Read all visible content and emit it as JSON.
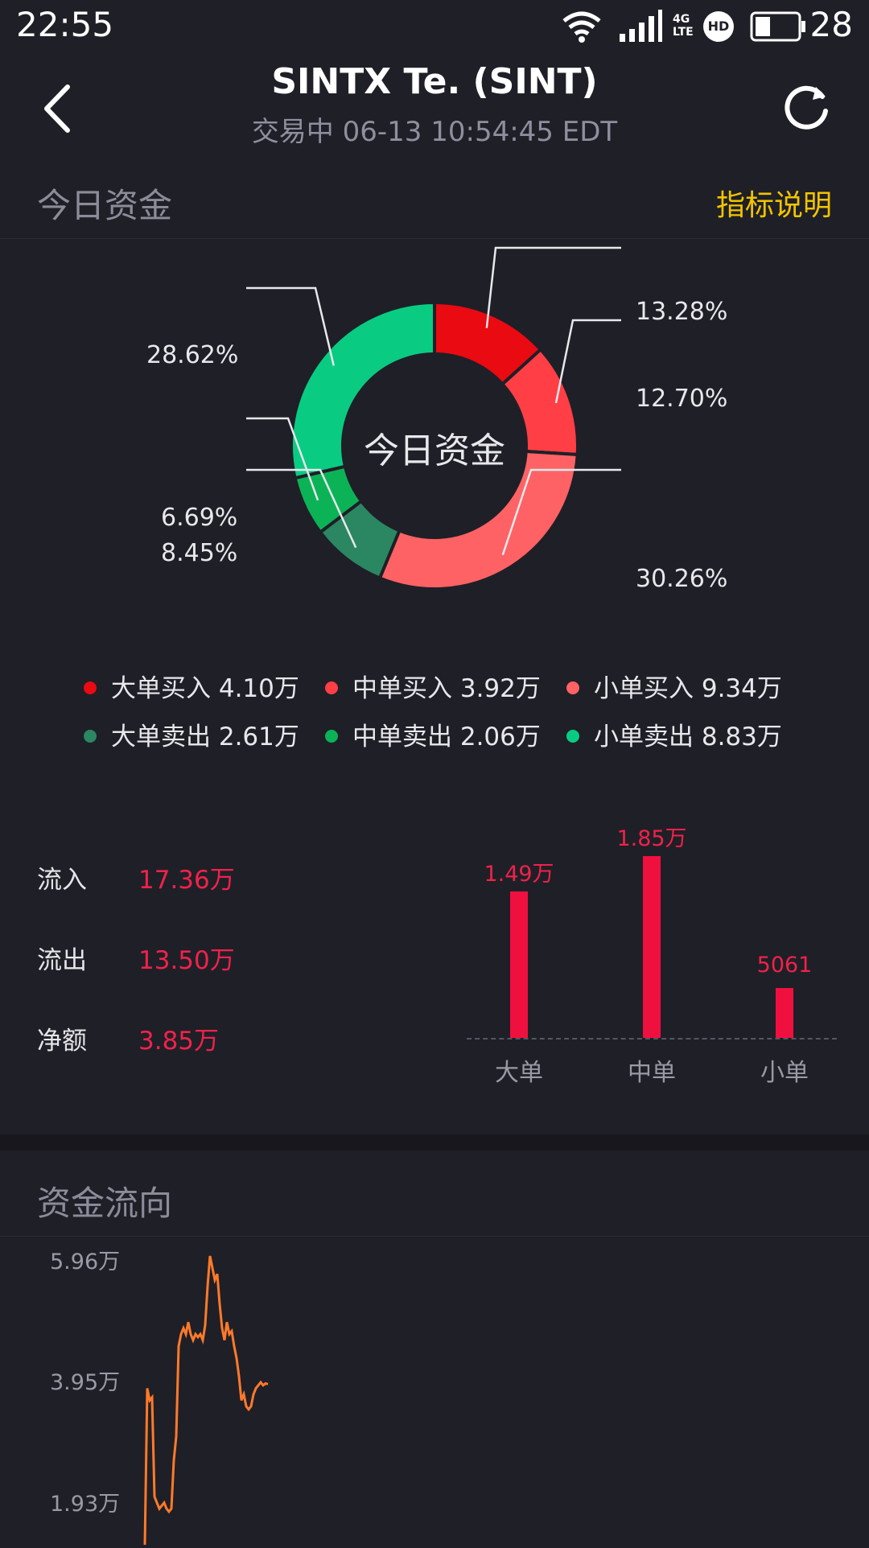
{
  "status_bar": {
    "time": "22:55",
    "network": "4G LTE",
    "hd": "HD",
    "battery": "28"
  },
  "header": {
    "title": "SINTX Te. (SINT)",
    "subtitle": "交易中 06-13 10:54:45 EDT"
  },
  "today_funds": {
    "section_title": "今日资金",
    "indicator_link": "指标说明",
    "donut_center": "今日资金"
  },
  "colors": {
    "large_buy": "#e90a12",
    "medium_buy": "#ff3f45",
    "small_buy": "#ff6264",
    "large_sell": "#2a8762",
    "medium_sell": "#0bb356",
    "small_sell": "#09cc82",
    "accent_yellow": "#f2c400",
    "value_red": "#f0224a",
    "line_orange": "#ff7a2a"
  },
  "legend": [
    {
      "label": "大单买入 4.10万",
      "color": "#e90a12"
    },
    {
      "label": "中单买入 3.92万",
      "color": "#ff3f45"
    },
    {
      "label": "小单买入 9.34万",
      "color": "#ff6264"
    },
    {
      "label": "大单卖出 2.61万",
      "color": "#2a8762"
    },
    {
      "label": "中单卖出 2.06万",
      "color": "#0bb356"
    },
    {
      "label": "小单卖出 8.83万",
      "color": "#09cc82"
    }
  ],
  "flows": [
    {
      "label": "流入",
      "value": "17.36万"
    },
    {
      "label": "流出",
      "value": "13.50万"
    },
    {
      "label": "净额",
      "value": "3.85万"
    }
  ],
  "fund_flow": {
    "section_title": "资金流向"
  },
  "chart_data": [
    {
      "type": "pie",
      "title": "今日资金",
      "categories": [
        "大单买入",
        "中单买入",
        "小单买入",
        "大单卖出",
        "中单卖出",
        "小单卖出"
      ],
      "values": [
        13.28,
        12.7,
        30.26,
        8.45,
        6.69,
        28.62
      ],
      "labels": [
        "13.28%",
        "12.70%",
        "30.26%",
        "8.45%",
        "6.69%",
        "28.62%"
      ]
    },
    {
      "type": "bar",
      "categories": [
        "大单",
        "中单",
        "小单"
      ],
      "values": [
        14900,
        18500,
        5061
      ],
      "labels": [
        "1.49万",
        "1.85万",
        "5061"
      ]
    },
    {
      "type": "line",
      "ytick_labels": [
        "5.96万",
        "3.95万",
        "1.93万"
      ],
      "ytick_values": [
        59600,
        39500,
        19300
      ],
      "ylim": [
        12000,
        60000
      ],
      "values": [
        12000,
        38000,
        36000,
        36500,
        20000,
        19000,
        18000,
        18500,
        19000,
        18000,
        17500,
        18000,
        26000,
        30000,
        45000,
        47000,
        48000,
        47000,
        49000,
        47000,
        46000,
        47000,
        46500,
        47000,
        46000,
        48500,
        55000,
        60000,
        58000,
        56000,
        57000,
        52000,
        48000,
        46000,
        49000,
        47000,
        47500,
        45000,
        43000,
        40000,
        36000,
        37000,
        35000,
        34500,
        35000,
        37000,
        38000,
        38500,
        39000,
        38500,
        38800,
        38700
      ]
    }
  ]
}
